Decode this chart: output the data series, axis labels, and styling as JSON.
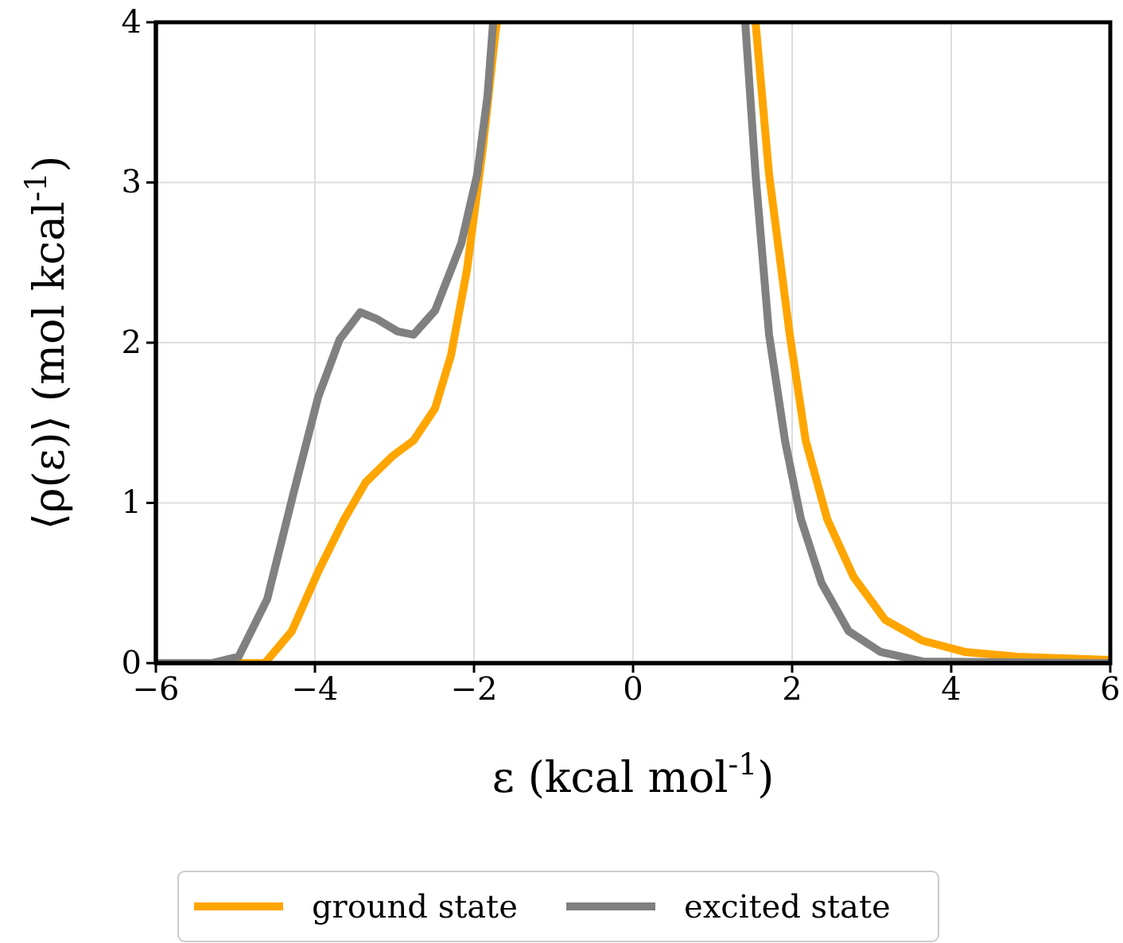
{
  "chart_data": {
    "type": "line",
    "xlabel": "ε (kcal mol$^{-1}$)",
    "ylabel": "⟨ρ(ε)⟩ (mol kcal$^{-1}$)",
    "xlim": [
      -6,
      6
    ],
    "ylim": [
      0,
      4
    ],
    "xticks": [
      {
        "value": -6,
        "label": "−6"
      },
      {
        "value": -4,
        "label": "−4"
      },
      {
        "value": -2,
        "label": "−2"
      },
      0,
      2,
      4,
      6
    ],
    "yticks": [
      0,
      1,
      2,
      3,
      4
    ],
    "grid": true,
    "legend": "bottom",
    "line_style": "solid",
    "series": [
      {
        "name": "ground state",
        "color": "#ffa500",
        "x": [
          -6,
          -5,
          -4.63,
          -4.29,
          -3.96,
          -3.63,
          -3.36,
          -3.03,
          -2.76,
          -2.49,
          -2.29,
          -2.09,
          -1.89,
          -1.73,
          -1.71,
          0,
          1.54,
          1.71,
          1.97,
          2.17,
          2.44,
          2.77,
          3.17,
          3.64,
          4.17,
          4.83,
          6
        ],
        "values": [
          0,
          0,
          0,
          0.2,
          0.57,
          0.9,
          1.13,
          1.29,
          1.39,
          1.59,
          1.92,
          2.45,
          3.21,
          3.94,
          4,
          null,
          4,
          3.05,
          2.05,
          1.39,
          0.9,
          0.54,
          0.27,
          0.14,
          0.07,
          0.04,
          0.02
        ]
      },
      {
        "name": "excited state",
        "color": "#808080",
        "x": [
          -6,
          -5.3,
          -4.96,
          -4.6,
          -4.27,
          -3.96,
          -3.69,
          -3.43,
          -3.23,
          -2.96,
          -2.76,
          -2.49,
          -2.16,
          -1.96,
          -1.83,
          -1.76,
          0,
          1.41,
          1.54,
          1.71,
          1.91,
          2.11,
          2.37,
          2.71,
          3.11,
          3.64,
          6
        ],
        "values": [
          0,
          0,
          0.04,
          0.4,
          1.06,
          1.66,
          2.02,
          2.19,
          2.15,
          2.07,
          2.05,
          2.2,
          2.62,
          3.05,
          3.54,
          4,
          null,
          4,
          3.05,
          2.05,
          1.39,
          0.9,
          0.5,
          0.2,
          0.07,
          0.01,
          0
        ]
      }
    ]
  }
}
